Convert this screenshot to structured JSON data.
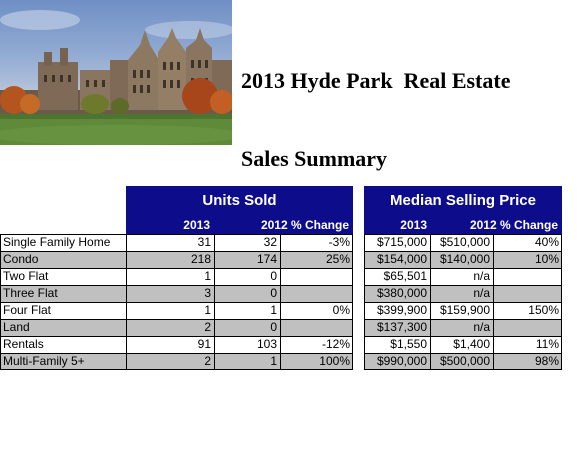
{
  "title_line1": "2013 Hyde Park  Real Estate",
  "title_line2": "Sales Summary",
  "units_sold_header": "Units Sold",
  "median_price_header": "Median Selling Price",
  "col_2013": "2013",
  "col_2012_change": "2012 % Change",
  "col_2013b": "2013",
  "col_2012_change_b": "2012 % Change",
  "rows": [
    {
      "label": "Single Family Home",
      "u13": "31",
      "u12": "32",
      "uchg": "-3%",
      "p13": "$715,000",
      "p12": "$510,000",
      "pchg": "40%",
      "shade": false
    },
    {
      "label": "Condo",
      "u13": "218",
      "u12": "174",
      "uchg": "25%",
      "p13": "$154,000",
      "p12": "$140,000",
      "pchg": "10%",
      "shade": true
    },
    {
      "label": "Two Flat",
      "u13": "1",
      "u12": "0",
      "uchg": "",
      "p13": "$65,501",
      "p12": "n/a",
      "pchg": "",
      "shade": false
    },
    {
      "label": "Three Flat",
      "u13": "3",
      "u12": "0",
      "uchg": "",
      "p13": "$380,000",
      "p12": "n/a",
      "pchg": "",
      "shade": true
    },
    {
      "label": "Four Flat",
      "u13": "1",
      "u12": "1",
      "uchg": "0%",
      "p13": "$399,900",
      "p12": "$159,900",
      "pchg": "150%",
      "shade": false
    },
    {
      "label": "Land",
      "u13": "2",
      "u12": "0",
      "uchg": "",
      "p13": "$137,300",
      "p12": "n/a",
      "pchg": "",
      "shade": true
    },
    {
      "label": "Rentals",
      "u13": "91",
      "u12": "103",
      "uchg": "-12%",
      "p13": "$1,550",
      "p12": "$1,400",
      "pchg": "11%",
      "shade": false
    },
    {
      "label": "Multi-Family 5+",
      "u13": "2",
      "u12": "1",
      "uchg": "100%",
      "p13": "$990,000",
      "p12": "$500,000",
      "pchg": "98%",
      "shade": true
    }
  ],
  "colors": {
    "header_bg": "#0d0d8c",
    "row_shade": "#c0c0c0"
  }
}
